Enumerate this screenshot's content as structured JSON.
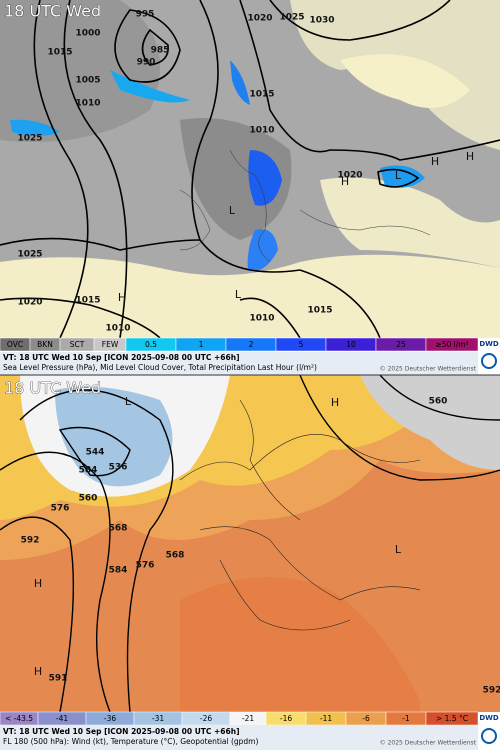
{
  "panels": [
    {
      "time_label": "18 UTC Wed",
      "map_labels": [
        "995",
        "1000",
        "1015",
        "985",
        "990",
        "1005",
        "1010",
        "1020",
        "1025",
        "1030",
        "1015",
        "1010",
        "1025",
        "1020",
        "1025",
        "1020",
        "1015",
        "1010",
        "1010",
        "1015"
      ],
      "centers": [
        "H",
        "H",
        "L",
        "H",
        "H",
        "L",
        "L"
      ],
      "legend": [
        {
          "label": "OVC",
          "color": "#6e6e6e"
        },
        {
          "label": "BKN",
          "color": "#8c8c8c"
        },
        {
          "label": "SCT",
          "color": "#aaaaaa"
        },
        {
          "label": "FEW",
          "color": "#c8c8c8"
        },
        {
          "label": "0.5",
          "color": "#12c8f0"
        },
        {
          "label": "1",
          "color": "#10a4f4"
        },
        {
          "label": "2",
          "color": "#1478f8"
        },
        {
          "label": "5",
          "color": "#2048f4"
        },
        {
          "label": "10",
          "color": "#3c20d8"
        },
        {
          "label": "25",
          "color": "#6a1ca8"
        },
        {
          "label": "≥50 l/m²",
          "color": "#a0106c"
        }
      ],
      "valid_time": "VT: 18 UTC Wed  10 Sep [ICON 2025-09-08 00 UTC +66h]",
      "description": "Sea Level Pressure (hPa), Mid Level Cloud Cover, Total Precipitation Last Hour (l/m²)",
      "copyright": "© 2025 Deutscher Wetterdienst",
      "logo": "DWD"
    },
    {
      "time_label": "18 UTC Wed",
      "map_labels": [
        "560",
        "536",
        "544",
        "584",
        "560",
        "576",
        "568",
        "592",
        "584",
        "576",
        "568",
        "592",
        "591"
      ],
      "centers": [
        "H",
        "H",
        "L",
        "L",
        "H"
      ],
      "legend": [
        {
          "label": "< -43.5",
          "color": "#9a86c4"
        },
        {
          "label": "-41",
          "color": "#8a90cc"
        },
        {
          "label": "-36",
          "color": "#8eaad8"
        },
        {
          "label": "-31",
          "color": "#a4c2e2"
        },
        {
          "label": "-26",
          "color": "#c4daee"
        },
        {
          "label": "-21",
          "color": "#f4f4f4"
        },
        {
          "label": "-16",
          "color": "#f8dc6c"
        },
        {
          "label": "-11",
          "color": "#f2c04e"
        },
        {
          "label": "-6",
          "color": "#eaa04e"
        },
        {
          "label": "-1",
          "color": "#e27a40"
        },
        {
          "label": "> 1.5 °C",
          "color": "#d4502c"
        }
      ],
      "valid_time": "VT: 18 UTC Wed  10 Sep [ICON 2025-09-08 00 UTC +66h]",
      "description": "FL 180 (500 hPa): Wind (kt), Temperature (°C), Geopotential (gpdm)",
      "copyright": "© 2025 Deutscher Wetterdienst",
      "logo": "DWD"
    }
  ]
}
